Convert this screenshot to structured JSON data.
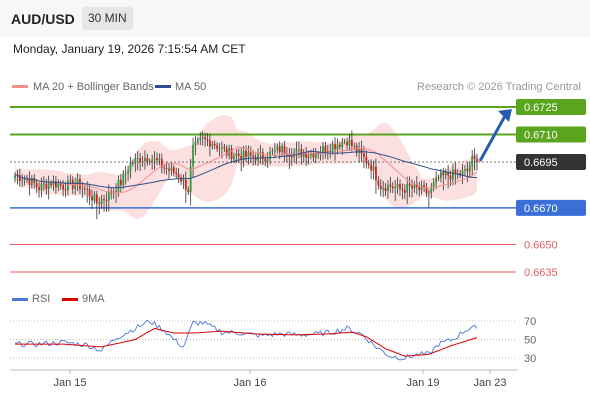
{
  "header": {
    "pair": "AUD/USD",
    "timeframe": "30 MIN"
  },
  "datetime": "Monday, January 19, 2026 7:15:54 AM CET",
  "legend": [
    {
      "label": "MA 20 + Bollinger Bands",
      "color": "#f28e8e"
    },
    {
      "label": "MA 50",
      "color": "#2e4e8a"
    }
  ],
  "credit": "Research © 2026 Trading Central",
  "colors": {
    "up": "#2a9a3a",
    "down": "#cc2222",
    "resistance": "#5aa51e",
    "support": "#3a6fd8",
    "lowlevel": "#e06060",
    "current": "#333333",
    "band": "#fbd6d6",
    "ma20": "#f28e8e",
    "ma50": "#2e4e8a",
    "arrow": "#2a5db0",
    "rsi": "#4a78d4",
    "rsi_ma": "#dd0000"
  },
  "chart_data": {
    "type": "candlestick",
    "levels": [
      {
        "value": 0.6725,
        "label": "0.6725",
        "kind": "resistance"
      },
      {
        "value": 0.671,
        "label": "0.6710",
        "kind": "resistance"
      },
      {
        "value": 0.6695,
        "label": "0.6695",
        "kind": "current"
      },
      {
        "value": 0.667,
        "label": "0.6670",
        "kind": "support"
      },
      {
        "value": 0.665,
        "label": "0.6650",
        "kind": "lowlevel"
      },
      {
        "value": 0.6635,
        "label": "0.6635",
        "kind": "lowlevel"
      }
    ],
    "x_ticks": [
      "Jan 15",
      "Jan 16",
      "Jan 19",
      "Jan 23"
    ],
    "price_anchors": [
      [
        0,
        0.6688
      ],
      [
        6,
        0.6685
      ],
      [
        10,
        0.6681
      ],
      [
        15,
        0.6684
      ],
      [
        20,
        0.6682
      ],
      [
        26,
        0.6683
      ],
      [
        30,
        0.6679
      ],
      [
        34,
        0.6673
      ],
      [
        38,
        0.6676
      ],
      [
        44,
        0.6684
      ],
      [
        48,
        0.6694
      ],
      [
        52,
        0.6697
      ],
      [
        56,
        0.6698
      ],
      [
        62,
        0.6692
      ],
      [
        68,
        0.6688
      ],
      [
        72,
        0.668
      ],
      [
        74,
        0.6702
      ],
      [
        78,
        0.6707
      ],
      [
        82,
        0.6706
      ],
      [
        88,
        0.67
      ],
      [
        96,
        0.6698
      ],
      [
        104,
        0.6698
      ],
      [
        110,
        0.6702
      ],
      [
        116,
        0.67
      ],
      [
        124,
        0.67
      ],
      [
        130,
        0.6703
      ],
      [
        138,
        0.6707
      ],
      [
        142,
        0.6701
      ],
      [
        148,
        0.6693
      ],
      [
        152,
        0.6682
      ],
      [
        156,
        0.6682
      ],
      [
        160,
        0.668
      ],
      [
        164,
        0.6681
      ],
      [
        168,
        0.668
      ],
      [
        172,
        0.6678
      ],
      [
        176,
        0.6686
      ],
      [
        180,
        0.6688
      ],
      [
        184,
        0.6688
      ],
      [
        188,
        0.669
      ],
      [
        190,
        0.6696
      ],
      [
        192,
        0.6695
      ]
    ],
    "rsi": {
      "levels": [
        70,
        50,
        30
      ],
      "anchors": [
        [
          0,
          45
        ],
        [
          10,
          45
        ],
        [
          20,
          47
        ],
        [
          30,
          44
        ],
        [
          36,
          38
        ],
        [
          42,
          52
        ],
        [
          50,
          62
        ],
        [
          56,
          70
        ],
        [
          62,
          60
        ],
        [
          66,
          50
        ],
        [
          70,
          42
        ],
        [
          74,
          68
        ],
        [
          78,
          68
        ],
        [
          86,
          58
        ],
        [
          94,
          57
        ],
        [
          102,
          54
        ],
        [
          110,
          56
        ],
        [
          118,
          55
        ],
        [
          126,
          56
        ],
        [
          132,
          58
        ],
        [
          138,
          62
        ],
        [
          144,
          56
        ],
        [
          150,
          42
        ],
        [
          156,
          32
        ],
        [
          162,
          30
        ],
        [
          168,
          34
        ],
        [
          172,
          34
        ],
        [
          176,
          45
        ],
        [
          182,
          50
        ],
        [
          186,
          58
        ],
        [
          190,
          64
        ],
        [
          192,
          62
        ]
      ],
      "ma_anchors": [
        [
          0,
          45
        ],
        [
          20,
          45
        ],
        [
          36,
          42
        ],
        [
          50,
          50
        ],
        [
          58,
          62
        ],
        [
          66,
          57
        ],
        [
          74,
          57
        ],
        [
          86,
          59
        ],
        [
          100,
          56
        ],
        [
          116,
          55
        ],
        [
          130,
          56
        ],
        [
          140,
          58
        ],
        [
          146,
          53
        ],
        [
          154,
          40
        ],
        [
          162,
          32
        ],
        [
          172,
          34
        ],
        [
          182,
          44
        ],
        [
          192,
          52
        ]
      ]
    }
  }
}
